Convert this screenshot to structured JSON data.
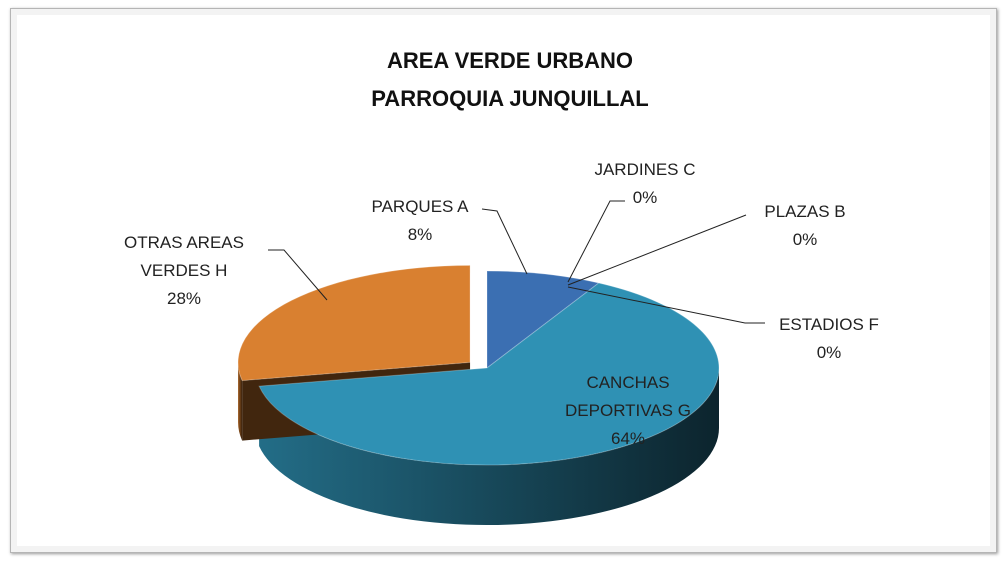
{
  "chart_data": {
    "type": "pie3d",
    "title": [
      "AREA VERDE URBANO",
      "PARROQUIA  JUNQUILLAL"
    ],
    "categories": [
      "PARQUES A",
      "JARDINES C",
      "PLAZAS B",
      "ESTADIOS  F",
      "CANCHAS DEPORTIVAS G",
      "OTRAS AREAS VERDES H"
    ],
    "values": [
      8,
      0,
      0,
      0,
      64,
      28
    ],
    "value_labels": [
      "8%",
      "0%",
      "0%",
      "0%",
      "64%",
      "28%"
    ],
    "colors": [
      "#3b6fb2",
      "#5c3b8c",
      "#6a4aa0",
      "#7a5ab0",
      "#2f91b4",
      "#d98030"
    ]
  }
}
